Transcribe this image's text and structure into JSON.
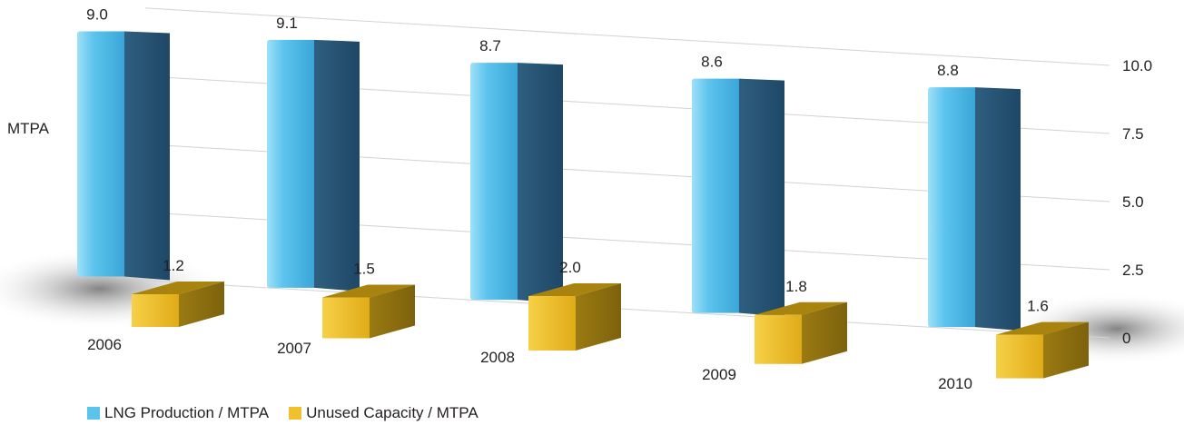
{
  "chart_data": {
    "type": "bar",
    "ylabel": "MTPA",
    "categories": [
      "2006",
      "2007",
      "2008",
      "2009",
      "2010"
    ],
    "series": [
      {
        "name": "LNG Production / MTPA",
        "values": [
          9.0,
          9.1,
          8.7,
          8.6,
          8.8
        ],
        "labels": [
          "9.0",
          "9.1",
          "8.7",
          "8.6",
          "8.8"
        ],
        "color": "#5bc4ec"
      },
      {
        "name": "Unused Capacity / MTPA",
        "values": [
          1.2,
          1.5,
          2.0,
          1.8,
          1.6
        ],
        "labels": [
          "1.2",
          "1.5",
          "2.0",
          "1.8",
          "1.6"
        ],
        "color": "#f0c02e"
      }
    ],
    "yticks": [
      "0",
      "2.5",
      "5.0",
      "7.5",
      "10.0"
    ],
    "ylim": [
      0,
      10
    ],
    "grid": true,
    "axis_position": "right",
    "legend_position": "bottom-left"
  }
}
